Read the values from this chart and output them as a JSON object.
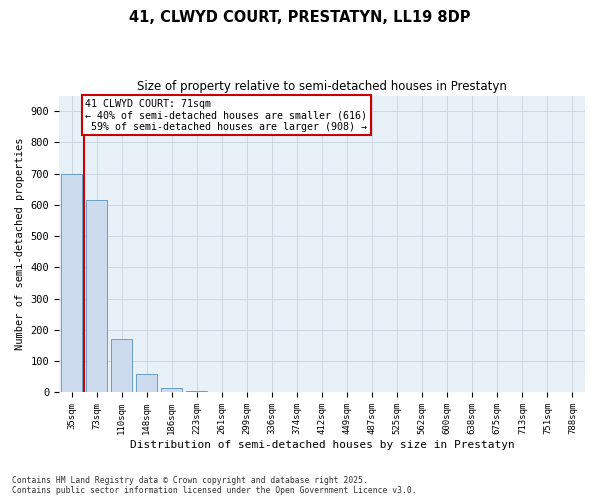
{
  "title": "41, CLWYD COURT, PRESTATYN, LL19 8DP",
  "subtitle": "Size of property relative to semi-detached houses in Prestatyn",
  "xlabel": "Distribution of semi-detached houses by size in Prestatyn",
  "ylabel": "Number of semi-detached properties",
  "bar_color": "#ccdcee",
  "bar_edge_color": "#6a9ec5",
  "annotation_box_color": "#cc0000",
  "annotation_text": "41 CLWYD COURT: 71sqm\n← 40% of semi-detached houses are smaller (616)\n 59% of semi-detached houses are larger (908) →",
  "vline_x_index": 1,
  "vline_color": "#cc0000",
  "categories": [
    "35sqm",
    "73sqm",
    "110sqm",
    "148sqm",
    "186sqm",
    "223sqm",
    "261sqm",
    "299sqm",
    "336sqm",
    "374sqm",
    "412sqm",
    "449sqm",
    "487sqm",
    "525sqm",
    "562sqm",
    "600sqm",
    "638sqm",
    "675sqm",
    "713sqm",
    "751sqm",
    "788sqm"
  ],
  "values": [
    700,
    615,
    170,
    60,
    13,
    5,
    0,
    0,
    0,
    0,
    0,
    0,
    0,
    0,
    0,
    0,
    0,
    0,
    0,
    0,
    0
  ],
  "ylim": [
    0,
    950
  ],
  "yticks": [
    0,
    100,
    200,
    300,
    400,
    500,
    600,
    700,
    800,
    900
  ],
  "footnote": "Contains HM Land Registry data © Crown copyright and database right 2025.\nContains public sector information licensed under the Open Government Licence v3.0.",
  "background_color": "#e8f0f8",
  "grid_color": "#d0dce8",
  "fig_bg_color": "#ffffff"
}
